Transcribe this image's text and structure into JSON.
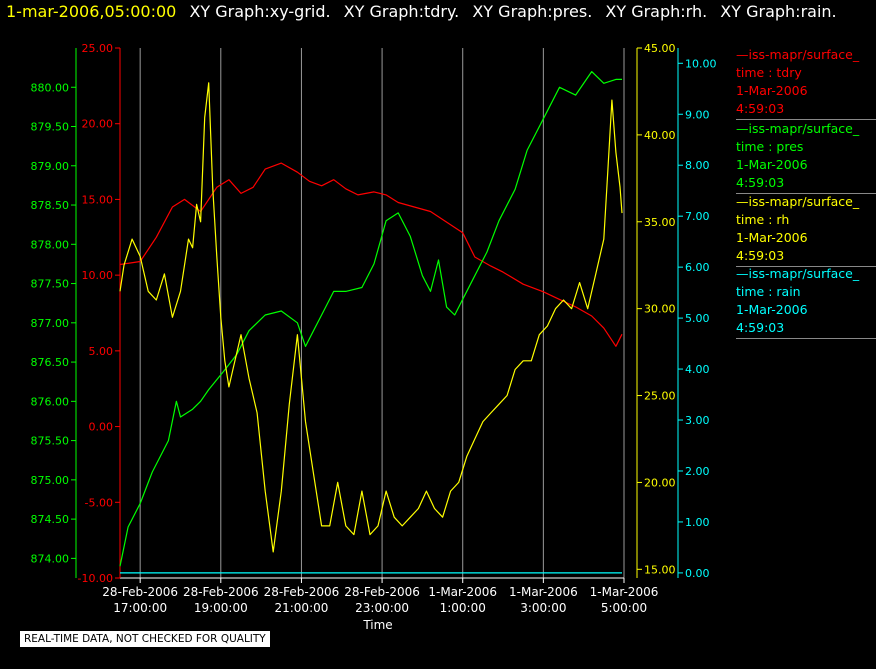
{
  "header": {
    "datetime": "1-mar-2006,05:00:00",
    "graphs": [
      "XY Graph:xy-grid.",
      "XY Graph:tdry.",
      "XY Graph:pres.",
      "XY Graph:rh.",
      "XY Graph:rain."
    ]
  },
  "notice": "REAL-TIME DATA, NOT CHECKED FOR QUALITY",
  "legend": [
    {
      "name": "iss-mapr/surface_",
      "var": "time : tdry",
      "date": "1-Mar-2006",
      "time": "4:59:03",
      "color": "#ff0000"
    },
    {
      "name": "iss-mapr/surface_",
      "var": "time : pres",
      "date": "1-Mar-2006",
      "time": "4:59:03",
      "color": "#00ff00"
    },
    {
      "name": "iss-mapr/surface_",
      "var": "time : rh",
      "date": "1-Mar-2006",
      "time": "4:59:03",
      "color": "#ffff00"
    },
    {
      "name": "iss-mapr/surface_",
      "var": "time : rain",
      "date": "1-Mar-2006",
      "time": "4:59:03",
      "color": "#00ffff"
    }
  ],
  "chart_data": {
    "type": "line",
    "xlabel": "Time",
    "xlim": [
      16.5,
      29.0
    ],
    "x_ticks": [
      {
        "h": 17,
        "date": "28-Feb-2006",
        "time": "17:00:00"
      },
      {
        "h": 19,
        "date": "28-Feb-2006",
        "time": "19:00:00"
      },
      {
        "h": 21,
        "date": "28-Feb-2006",
        "time": "21:00:00"
      },
      {
        "h": 23,
        "date": "28-Feb-2006",
        "time": "23:00:00"
      },
      {
        "h": 25,
        "date": "1-Mar-2006",
        "time": "1:00:00"
      },
      {
        "h": 27,
        "date": "1-Mar-2006",
        "time": "3:00:00"
      },
      {
        "h": 29,
        "date": "1-Mar-2006",
        "time": "5:00:00"
      }
    ],
    "grid": "vertical",
    "axes": {
      "pres": {
        "color": "#00ff00",
        "side": "left",
        "range": [
          873.75,
          880.5
        ],
        "ticks": [
          "874.00",
          "874.50",
          "875.00",
          "875.50",
          "876.00",
          "876.50",
          "877.00",
          "877.50",
          "878.00",
          "878.50",
          "879.00",
          "879.50",
          "880.00"
        ]
      },
      "tdry": {
        "color": "#ff0000",
        "side": "left",
        "range": [
          -10,
          25
        ],
        "ticks": [
          "-10.00",
          "-5.00",
          "0.00",
          "5.00",
          "10.00",
          "15.00",
          "20.00",
          "25.00"
        ]
      },
      "rh": {
        "color": "#ffff00",
        "side": "right",
        "range": [
          14.5,
          45
        ],
        "ticks": [
          "15.00",
          "20.00",
          "25.00",
          "30.00",
          "35.00",
          "40.00",
          "45.00"
        ]
      },
      "rain": {
        "color": "#00ffff",
        "side": "right",
        "range": [
          -0.1,
          10.3
        ],
        "ticks": [
          "0.00",
          "1.00",
          "2.00",
          "3.00",
          "4.00",
          "5.00",
          "6.00",
          "7.00",
          "8.00",
          "9.00",
          "10.00"
        ]
      }
    },
    "series": [
      {
        "name": "tdry",
        "axis": "tdry",
        "color": "#ff0000",
        "x": [
          16.5,
          17.0,
          17.4,
          17.8,
          18.1,
          18.5,
          18.9,
          19.2,
          19.5,
          19.8,
          20.1,
          20.5,
          20.9,
          21.2,
          21.5,
          21.8,
          22.1,
          22.4,
          22.8,
          23.1,
          23.4,
          23.8,
          24.2,
          24.6,
          25.0,
          25.3,
          25.7,
          26.0,
          26.5,
          27.0,
          27.4,
          27.8,
          28.2,
          28.5,
          28.8,
          28.95
        ],
        "y": [
          10.7,
          10.9,
          12.5,
          14.5,
          15.0,
          14.2,
          15.8,
          16.3,
          15.4,
          15.8,
          17.0,
          17.4,
          16.8,
          16.2,
          15.9,
          16.3,
          15.7,
          15.3,
          15.5,
          15.3,
          14.8,
          14.5,
          14.2,
          13.5,
          12.8,
          11.2,
          10.6,
          10.2,
          9.4,
          8.9,
          8.4,
          7.9,
          7.3,
          6.5,
          5.3,
          6.1
        ]
      },
      {
        "name": "pres",
        "axis": "pres",
        "color": "#00ff00",
        "x": [
          16.5,
          16.7,
          17.0,
          17.3,
          17.7,
          17.9,
          18.0,
          18.3,
          18.5,
          18.7,
          19.1,
          19.4,
          19.7,
          20.1,
          20.5,
          20.9,
          21.1,
          21.3,
          21.5,
          21.8,
          22.1,
          22.5,
          22.8,
          23.1,
          23.4,
          23.7,
          24.0,
          24.2,
          24.4,
          24.6,
          24.8,
          25.0,
          25.3,
          25.6,
          25.9,
          26.3,
          26.6,
          27.0,
          27.4,
          27.8,
          28.2,
          28.5,
          28.8,
          28.95
        ],
        "y": [
          873.9,
          874.4,
          874.7,
          875.1,
          875.5,
          876.0,
          875.8,
          875.9,
          876.0,
          876.15,
          876.4,
          876.6,
          876.9,
          877.1,
          877.15,
          877.0,
          876.7,
          876.9,
          877.1,
          877.4,
          877.4,
          877.45,
          877.75,
          878.3,
          878.4,
          878.1,
          877.6,
          877.4,
          877.8,
          877.2,
          877.1,
          877.3,
          877.6,
          877.9,
          878.3,
          878.7,
          879.2,
          879.6,
          880.0,
          879.9,
          880.2,
          880.05,
          880.1,
          880.1
        ]
      },
      {
        "name": "rh",
        "axis": "rh",
        "color": "#ffff00",
        "x": [
          16.5,
          16.6,
          16.8,
          17.0,
          17.2,
          17.4,
          17.6,
          17.8,
          18.0,
          18.2,
          18.3,
          18.4,
          18.5,
          18.6,
          18.7,
          18.8,
          18.9,
          19.0,
          19.1,
          19.2,
          19.3,
          19.5,
          19.7,
          19.9,
          20.1,
          20.3,
          20.5,
          20.7,
          20.9,
          21.1,
          21.3,
          21.5,
          21.7,
          21.9,
          22.1,
          22.3,
          22.5,
          22.7,
          22.9,
          23.1,
          23.3,
          23.5,
          23.7,
          23.9,
          24.1,
          24.3,
          24.5,
          24.7,
          24.9,
          25.1,
          25.3,
          25.5,
          25.7,
          25.9,
          26.1,
          26.3,
          26.5,
          26.7,
          26.9,
          27.1,
          27.3,
          27.5,
          27.7,
          27.9,
          28.1,
          28.3,
          28.5,
          28.6,
          28.7,
          28.8,
          28.9,
          28.95
        ],
        "y": [
          31,
          32.5,
          34,
          33,
          31,
          30.5,
          32,
          29.5,
          31,
          34,
          33.5,
          36,
          35,
          41,
          43,
          37,
          33,
          29.5,
          27,
          25.5,
          26.5,
          28.5,
          26,
          24,
          19.5,
          16,
          19.5,
          24.5,
          28.5,
          23.5,
          20.5,
          17.5,
          17.5,
          20,
          17.5,
          17,
          19.5,
          17,
          17.5,
          19.5,
          18,
          17.5,
          18,
          18.5,
          19.5,
          18.5,
          18,
          19.5,
          20,
          21.5,
          22.5,
          23.5,
          24,
          24.5,
          25,
          26.5,
          27,
          27,
          28.5,
          29,
          30,
          30.5,
          30,
          31.5,
          30,
          32,
          34,
          38,
          42,
          39,
          37,
          35.5
        ]
      },
      {
        "name": "rain",
        "axis": "rain",
        "color": "#00ffff",
        "x": [
          16.5,
          28.95
        ],
        "y": [
          0.0,
          0.0
        ]
      }
    ]
  }
}
